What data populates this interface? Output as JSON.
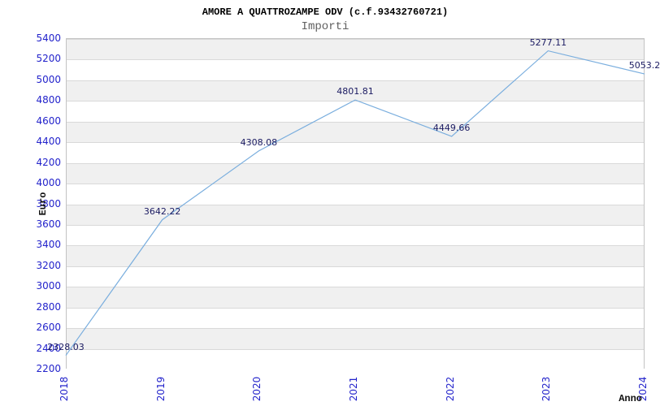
{
  "page": {
    "title": "AMORE A QUATTROZAMPE ODV (c.f.93432760721)",
    "subtitle": "Importi"
  },
  "chart_data": {
    "type": "line",
    "title": "AMORE A QUATTROZAMPE ODV (c.f.93432760721)",
    "subtitle": "Importi",
    "xlabel": "Anno",
    "ylabel": "Euro",
    "categories": [
      "2018",
      "2019",
      "2020",
      "2021",
      "2022",
      "2023",
      "2024"
    ],
    "series": [
      {
        "name": "Importi",
        "values": [
          2328.03,
          3642.22,
          4308.08,
          4801.81,
          4449.66,
          5277.11,
          5053.2
        ],
        "point_labels": [
          "2328.03",
          "3642.22",
          "4308.08",
          "4801.81",
          "4449.66",
          "5277.11",
          "5053.2"
        ]
      }
    ],
    "ylim": [
      2200,
      5400
    ],
    "ytick_step": 200,
    "grid": true,
    "band_fill": "alternating-horizontal",
    "legend_position": "none",
    "colors": {
      "line": "#7aaede",
      "tick_label": "#2323cb",
      "point_label": "#1b1b62",
      "band_gray": "#f0f0f0",
      "gridline": "#d9d9d9",
      "plot_border": "#c3c3c3",
      "title": "#000000",
      "subtitle": "#606060",
      "axis_title": "#111111"
    }
  }
}
